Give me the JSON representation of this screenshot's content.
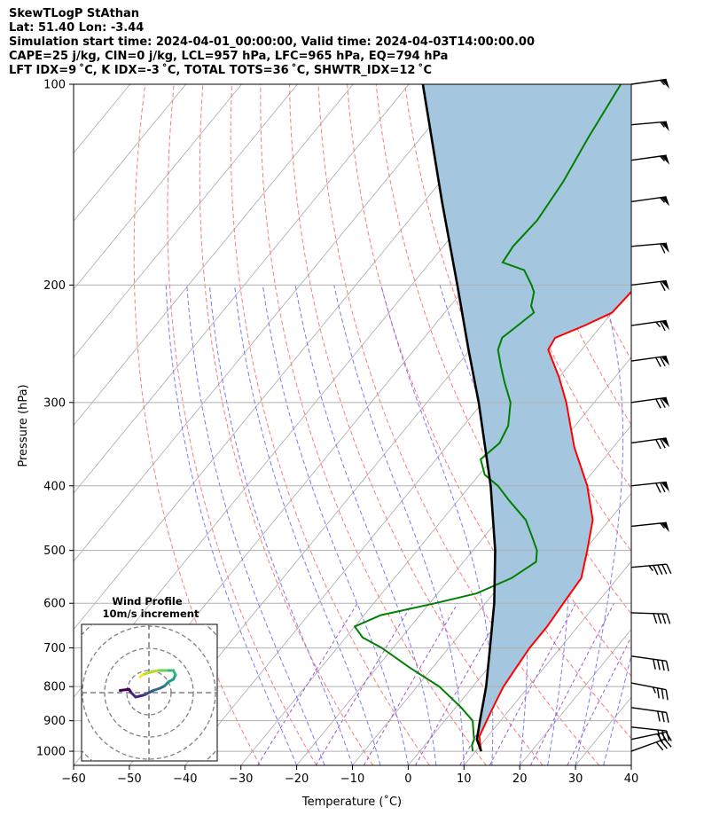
{
  "header": {
    "line1": "SkewTLogP StAthan",
    "line2": "Lat: 51.40   Lon: -3.44",
    "line3": "Simulation start time: 2024-04-01_00:00:00, Valid time: 2024-04-03T14:00:00.00",
    "line4": "CAPE=25 j/kg, CIN=0 j/kg, LCL=957 hPa, LFC=965 hPa, EQ=794 hPa",
    "line5": "LFT IDX=9 ˚C, K IDX=-3 ˚C, TOTAL TOTS=36 ˚C, SHWTR_IDX=12 ˚C"
  },
  "colors": {
    "temperature": "#ff0000",
    "dewpoint": "#008000",
    "parcel": "#000000",
    "cape_fill": "#a4c6df",
    "dry_adiabat": "#ff6a6a",
    "moist_adiabat": "#6a6aff",
    "mixing_ratio": "#9b59d0",
    "isotherm": "#aaaaaa",
    "grid": "#b0b0b0"
  },
  "chart_data": [
    {
      "type": "line",
      "title": "",
      "xlabel": "Temperature (˚C)",
      "ylabel": "Pressure (hPa)",
      "x_scale": "skewed-linear",
      "y_scale": "log-inverted",
      "xlim": [
        -60,
        40
      ],
      "ylim": [
        1050,
        100
      ],
      "xticks": [
        "−60",
        "−50",
        "−40",
        "−30",
        "−20",
        "−10",
        "0",
        "10",
        "20",
        "30",
        "40"
      ],
      "yticks": [
        "100",
        "200",
        "300",
        "400",
        "500",
        "600",
        "700",
        "800",
        "900",
        "1000"
      ],
      "grid": true,
      "series": [
        {
          "role": "temperature",
          "points": [
            [
              1000,
              11.0
            ],
            [
              980,
              10.0
            ],
            [
              950,
              8.5
            ],
            [
              900,
              7.5
            ],
            [
              850,
              6.5
            ],
            [
              800,
              5.5
            ],
            [
              750,
              5.0
            ],
            [
              700,
              4.5
            ],
            [
              650,
              4.5
            ],
            [
              600,
              4.0
            ],
            [
              550,
              3.5
            ],
            [
              500,
              0.5
            ],
            [
              450,
              -3.0
            ],
            [
              400,
              -9.0
            ],
            [
              350,
              -17.0
            ],
            [
              300,
              -25.0
            ],
            [
              275,
              -30.0
            ],
            [
              250,
              -36.0
            ],
            [
              240,
              -36.5
            ],
            [
              230,
              -33.0
            ],
            [
              220,
              -30.0
            ],
            [
              200,
              -29.5
            ],
            [
              180,
              -31.0
            ],
            [
              160,
              -35.0
            ],
            [
              150,
              -37.0
            ],
            [
              140,
              -40.5
            ],
            [
              130,
              -43.0
            ],
            [
              120,
              -44.0
            ],
            [
              110,
              -45.0
            ],
            [
              100,
              -46.0
            ]
          ]
        },
        {
          "role": "dewpoint",
          "points": [
            [
              1000,
              9.5
            ],
            [
              980,
              8.5
            ],
            [
              960,
              8.0
            ],
            [
              940,
              7.0
            ],
            [
              900,
              5.0
            ],
            [
              860,
              1.0
            ],
            [
              800,
              -6.0
            ],
            [
              750,
              -14.0
            ],
            [
              700,
              -22.0
            ],
            [
              675,
              -27.0
            ],
            [
              650,
              -30.0
            ],
            [
              625,
              -27.0
            ],
            [
              600,
              -19.0
            ],
            [
              580,
              -13.0
            ],
            [
              550,
              -9.0
            ],
            [
              520,
              -7.0
            ],
            [
              500,
              -8.5
            ],
            [
              480,
              -11.0
            ],
            [
              450,
              -15.0
            ],
            [
              420,
              -21.0
            ],
            [
              400,
              -25.0
            ],
            [
              385,
              -29.0
            ],
            [
              365,
              -32.0
            ],
            [
              345,
              -31.0
            ],
            [
              325,
              -32.0
            ],
            [
              300,
              -35.0
            ],
            [
              280,
              -39.0
            ],
            [
              265,
              -42.0
            ],
            [
              250,
              -45.0
            ],
            [
              240,
              -46.0
            ],
            [
              230,
              -45.0
            ],
            [
              220,
              -44.0
            ],
            [
              215,
              -45.5
            ],
            [
              205,
              -47.0
            ],
            [
              200,
              -48.5
            ],
            [
              190,
              -52.0
            ],
            [
              185,
              -57.0
            ],
            [
              175,
              -57.5
            ],
            [
              160,
              -57.0
            ],
            [
              140,
              -58.0
            ],
            [
              120,
              -60.0
            ],
            [
              100,
              -62.0
            ]
          ]
        },
        {
          "role": "parcel",
          "points": [
            [
              1000,
              11.0
            ],
            [
              960,
              8.5
            ],
            [
              900,
              6.3
            ],
            [
              800,
              2.4
            ],
            [
              700,
              -2.6
            ],
            [
              600,
              -8.4
            ],
            [
              500,
              -16.0
            ],
            [
              400,
              -26.3
            ],
            [
              300,
              -40.7
            ],
            [
              250,
              -50.3
            ],
            [
              200,
              -61.8
            ],
            [
              150,
              -76.8
            ],
            [
              100,
              -97.5
            ]
          ]
        }
      ]
    },
    {
      "type": "hodograph",
      "title": "Wind Profile",
      "subtitle": "10m/s increment",
      "ring_spacing_ms": 10,
      "points_uv_ms": [
        [
          -13,
          1
        ],
        [
          -9,
          1.5
        ],
        [
          -8,
          0
        ],
        [
          -6,
          -2
        ],
        [
          -2,
          -1
        ],
        [
          2,
          1
        ],
        [
          5,
          2
        ],
        [
          7,
          3
        ],
        [
          9,
          5
        ],
        [
          11,
          6
        ],
        [
          12,
          8
        ],
        [
          11,
          10
        ],
        [
          8,
          10
        ],
        [
          4,
          10
        ],
        [
          0,
          9
        ],
        [
          -3,
          8
        ],
        [
          -4,
          7
        ]
      ]
    }
  ],
  "barbs": [
    {
      "p": 100,
      "kt": 55,
      "dir": 262
    },
    {
      "p": 115,
      "kt": 55,
      "dir": 265
    },
    {
      "p": 130,
      "kt": 55,
      "dir": 262
    },
    {
      "p": 150,
      "kt": 55,
      "dir": 262
    },
    {
      "p": 175,
      "kt": 60,
      "dir": 265
    },
    {
      "p": 200,
      "kt": 60,
      "dir": 263
    },
    {
      "p": 230,
      "kt": 65,
      "dir": 262
    },
    {
      "p": 260,
      "kt": 70,
      "dir": 262
    },
    {
      "p": 300,
      "kt": 70,
      "dir": 262
    },
    {
      "p": 345,
      "kt": 70,
      "dir": 262
    },
    {
      "p": 400,
      "kt": 70,
      "dir": 264
    },
    {
      "p": 460,
      "kt": 55,
      "dir": 264
    },
    {
      "p": 530,
      "kt": 45,
      "dir": 265
    },
    {
      "p": 620,
      "kt": 40,
      "dir": 272
    },
    {
      "p": 720,
      "kt": 40,
      "dir": 278
    },
    {
      "p": 790,
      "kt": 35,
      "dir": 281
    },
    {
      "p": 860,
      "kt": 30,
      "dir": 278
    },
    {
      "p": 920,
      "kt": 30,
      "dir": 276
    },
    {
      "p": 960,
      "kt": 30,
      "dir": 258
    },
    {
      "p": 1000,
      "kt": 30,
      "dir": 250
    }
  ]
}
